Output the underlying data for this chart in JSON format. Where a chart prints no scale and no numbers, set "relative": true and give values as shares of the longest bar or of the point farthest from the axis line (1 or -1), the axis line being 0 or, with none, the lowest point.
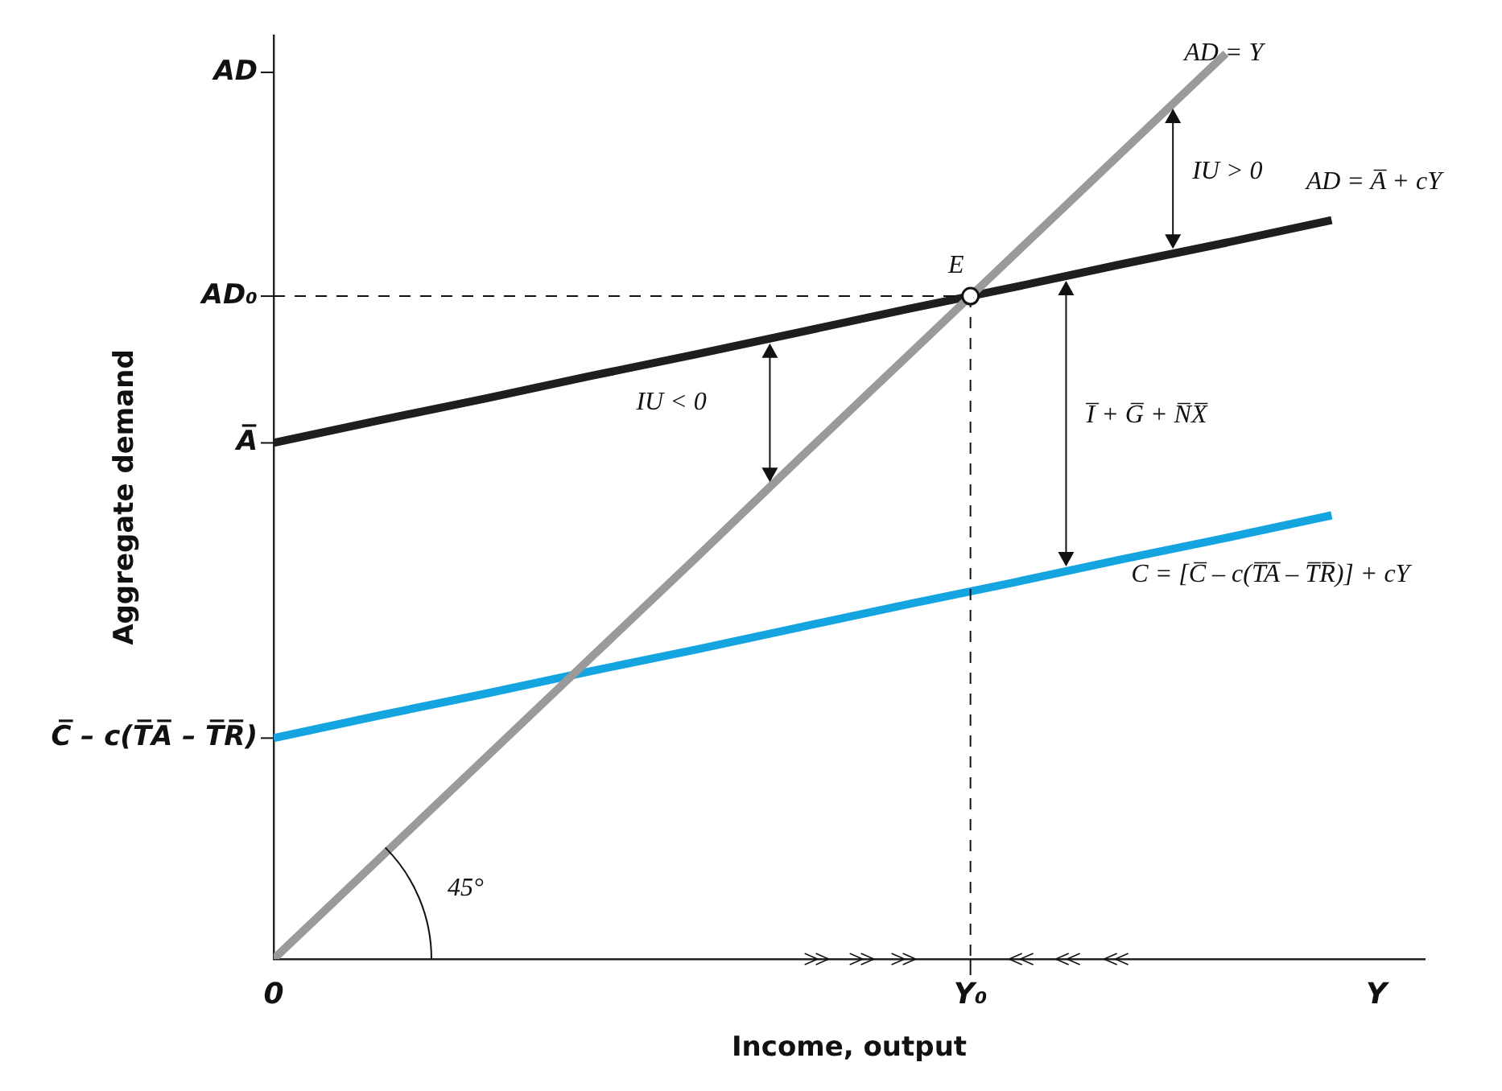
{
  "chart_data": {
    "type": "line",
    "relative": true,
    "xlabel": "Income, output",
    "ylabel": "Aggregate demand",
    "categories": [
      null,
      null,
      null,
      null,
      null,
      null,
      null,
      null,
      null,
      null,
      null
    ],
    "series": [
      {
        "color": "#9a9a9a",
        "values": [
          0,
          0.111,
          0.222,
          0.333,
          0.444,
          0.556,
          0.667,
          0.778,
          0.889,
          1.0,
          null
        ]
      },
      {
        "color": "#1e1e1e",
        "values": [
          0.57,
          0.595,
          0.619,
          0.644,
          0.668,
          0.693,
          0.718,
          0.742,
          0.767,
          0.791,
          0.816
        ]
      },
      {
        "color": "#14a5e0",
        "values": [
          0.244,
          0.269,
          0.293,
          0.318,
          0.342,
          0.367,
          0.392,
          0.416,
          0.441,
          0.465,
          0.49
        ]
      }
    ],
    "annotations": [
      "AD",
      "AD₀",
      "A̅",
      "C̅ – c(T̅A̅ – T̅R̅)",
      "AD = Y",
      "AD = A̅ + cY",
      "C = [C̅ – c(T̅A̅ – T̅R̅)] + cY",
      "IU > 0",
      "IU < 0",
      "I̅ + G̅ + N̅X̅",
      "E",
      "45°",
      "0",
      "Y₀",
      "Y"
    ],
    "marker": "none",
    "line_style": "solid",
    "grid": false,
    "legend": false
  }
}
